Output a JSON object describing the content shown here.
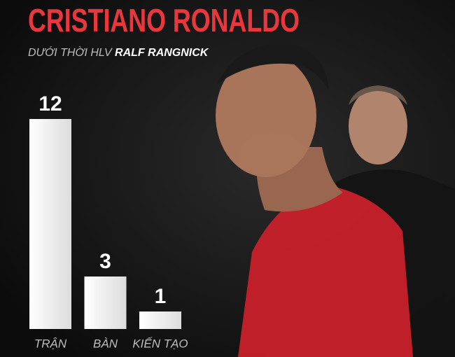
{
  "chart_data": {
    "type": "bar",
    "title": "CRISTIANO RONALDO",
    "subtitle": "DƯỚI THỜI HLV",
    "subtitle_highlight": "RALF RANGNICK",
    "categories": [
      "TRẬN",
      "BÀN",
      "KIẾN TẠO"
    ],
    "values": [
      12,
      3,
      1
    ],
    "color": "#f2f2f2",
    "title_color": "#e8383d"
  }
}
